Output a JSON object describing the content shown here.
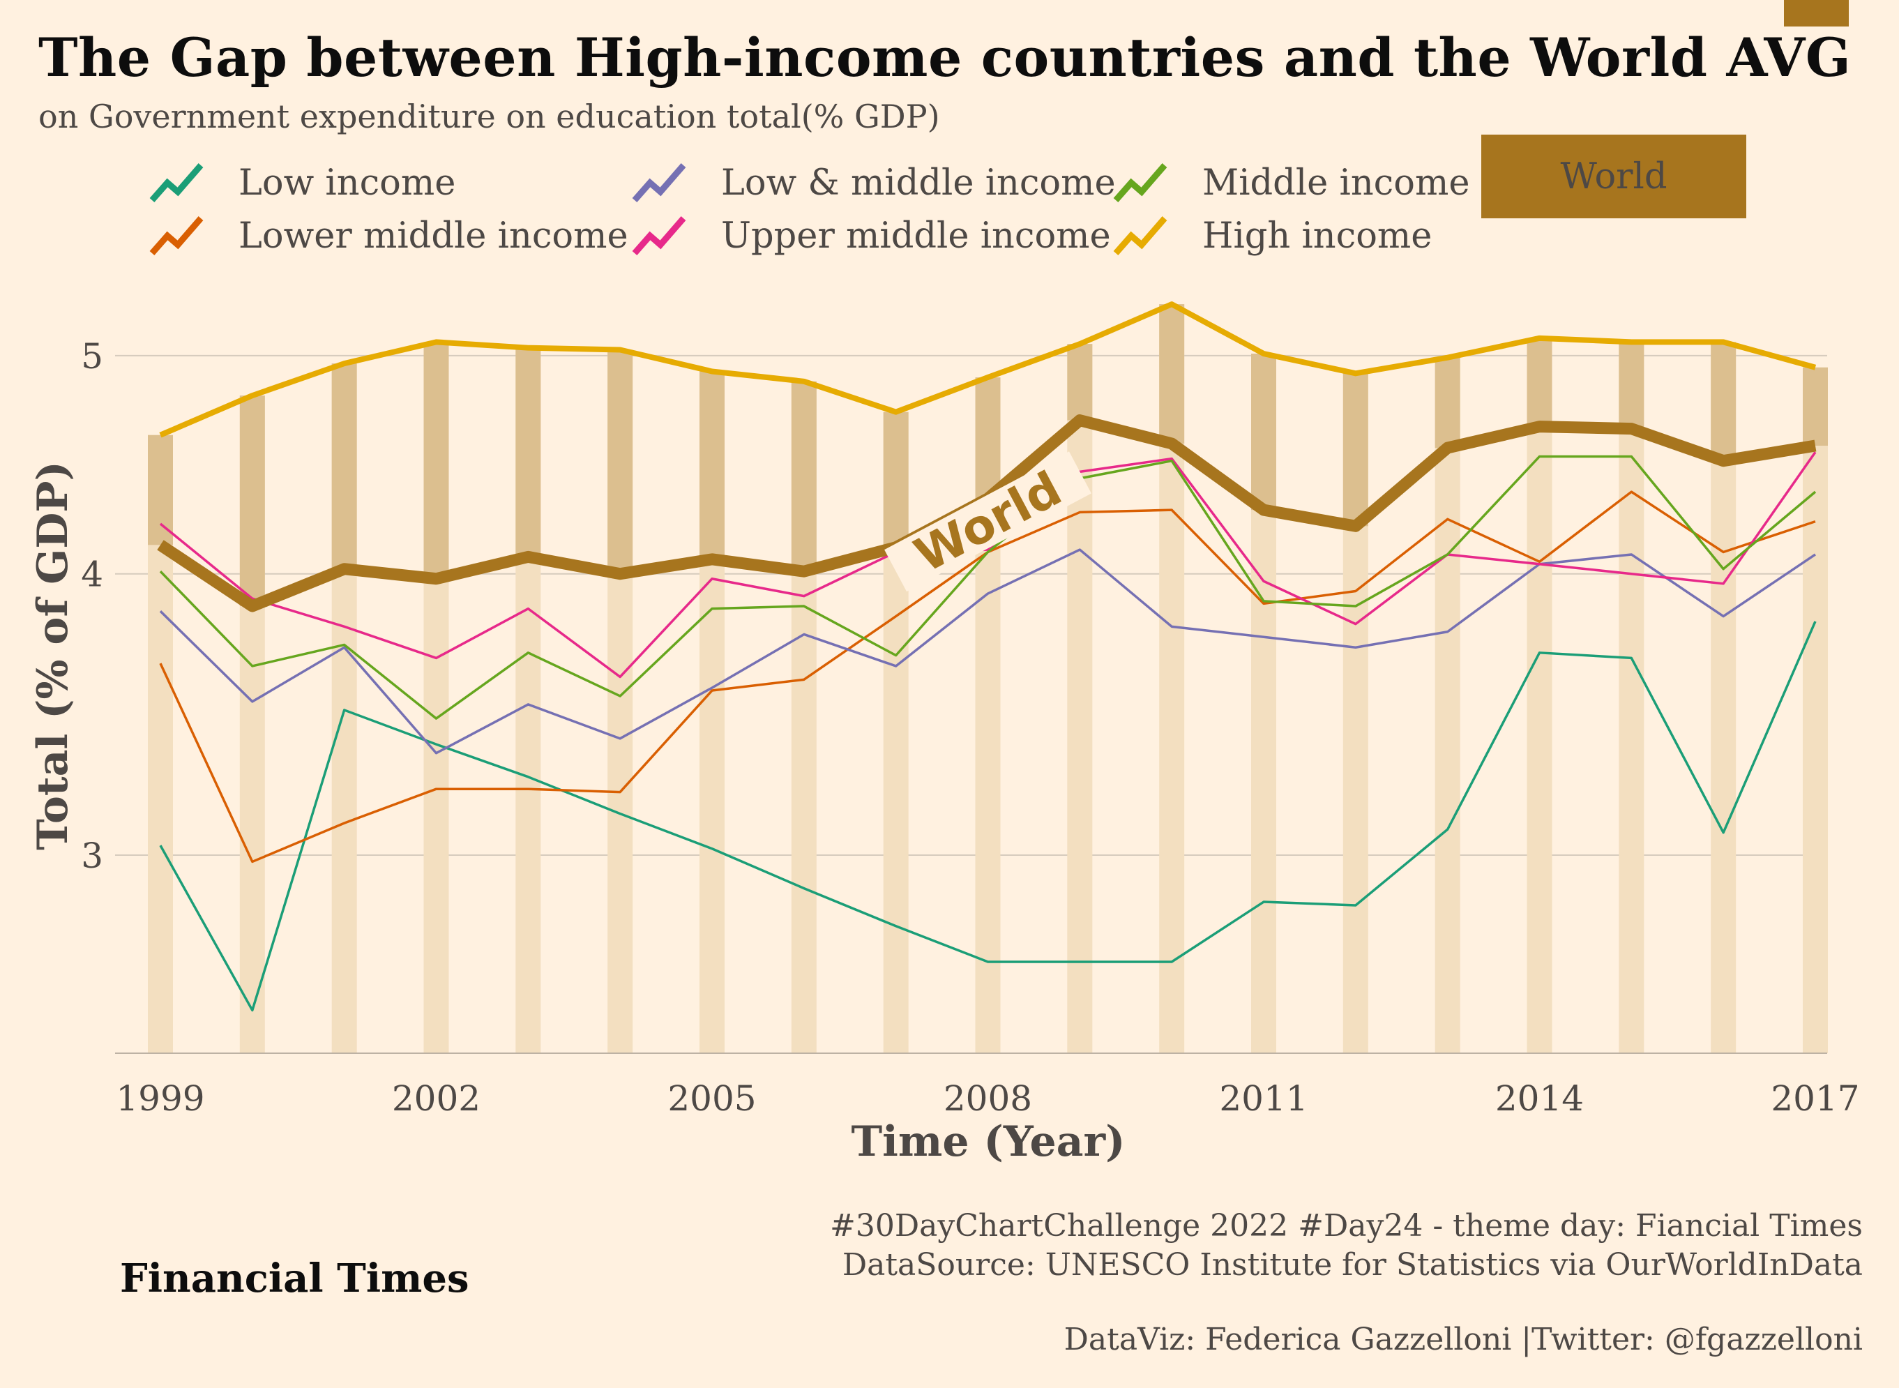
{
  "header": {
    "title": "The Gap between High-income countries and the World AVG",
    "subtitle": "on Government expenditure on education total(% GDP)"
  },
  "legend": {
    "items": [
      {
        "label": "Low income",
        "color": "#1b9e77"
      },
      {
        "label": "Lower middle income",
        "color": "#d95f02"
      },
      {
        "label": "Low & middle income",
        "color": "#7570b3"
      },
      {
        "label": "Upper middle income",
        "color": "#e7298a"
      },
      {
        "label": "Middle income",
        "color": "#66a61e"
      },
      {
        "label": "High income",
        "color": "#e6ab02"
      }
    ],
    "world_label": "World",
    "world_color": "#a7751e"
  },
  "chart_data": {
    "type": "line",
    "title": "The Gap between High-income countries and the World AVG",
    "subtitle": "on Government expenditure on education total(% GDP)",
    "xlabel": "Time (Year)",
    "ylabel": "Total (% of GDP)",
    "x": [
      1999,
      2000,
      2001,
      2002,
      2003,
      2004,
      2005,
      2006,
      2007,
      2008,
      2009,
      2010,
      2011,
      2012,
      2013,
      2014,
      2015,
      2016,
      2017
    ],
    "xticks": [
      "1999",
      "2002",
      "2005",
      "2008",
      "2011",
      "2014",
      "2017"
    ],
    "yticks": [
      "3",
      "4",
      "5"
    ],
    "ylim": [
      2.45,
      5.35
    ],
    "log_scale": "y",
    "grid": "horizontal",
    "legend_position": "top",
    "annotation": "World",
    "series": [
      {
        "name": "Low income",
        "color": "#1b9e77",
        "values": [
          3.03,
          2.56,
          3.48,
          3.36,
          3.25,
          3.13,
          3.02,
          2.9,
          2.79,
          2.69,
          2.69,
          2.69,
          2.86,
          2.85,
          3.08,
          3.69,
          3.67,
          3.07,
          3.81
        ]
      },
      {
        "name": "Lower middle income",
        "color": "#d95f02",
        "values": [
          3.65,
          2.98,
          3.1,
          3.21,
          3.21,
          3.2,
          3.55,
          3.59,
          3.83,
          4.09,
          4.26,
          4.27,
          3.88,
          3.93,
          4.23,
          4.05,
          4.35,
          4.09,
          4.22
        ]
      },
      {
        "name": "Low & middle income",
        "color": "#7570b3",
        "values": [
          3.85,
          3.51,
          3.71,
          3.33,
          3.5,
          3.38,
          3.56,
          3.76,
          3.64,
          3.92,
          4.1,
          3.79,
          3.75,
          3.71,
          3.77,
          4.04,
          4.08,
          3.83,
          4.08
        ]
      },
      {
        "name": "Upper middle income",
        "color": "#e7298a",
        "values": [
          4.21,
          3.9,
          3.79,
          3.67,
          3.86,
          3.6,
          3.98,
          3.91,
          4.09,
          4.1,
          4.44,
          4.5,
          3.97,
          3.8,
          4.08,
          4.04,
          4.0,
          3.96,
          4.53
        ]
      },
      {
        "name": "Middle income",
        "color": "#66a61e",
        "values": [
          4.01,
          3.64,
          3.72,
          3.45,
          3.69,
          3.53,
          3.86,
          3.87,
          3.68,
          4.09,
          4.41,
          4.49,
          3.89,
          3.87,
          4.08,
          4.51,
          4.51,
          4.02,
          4.35
        ]
      },
      {
        "name": "High income",
        "color": "#e6ab02",
        "values": [
          4.61,
          4.8,
          4.96,
          5.07,
          5.04,
          5.03,
          4.92,
          4.87,
          4.72,
          4.89,
          5.06,
          5.27,
          5.01,
          4.91,
          4.99,
          5.09,
          5.07,
          5.07,
          4.94
        ]
      },
      {
        "name": "World",
        "color": "#a7751e",
        "values": [
          4.12,
          3.87,
          4.02,
          3.98,
          4.07,
          4.0,
          4.06,
          4.01,
          4.11,
          4.32,
          4.68,
          4.57,
          4.27,
          4.2,
          4.55,
          4.65,
          4.64,
          4.49,
          4.56
        ]
      }
    ]
  },
  "footer": {
    "brand": "Financial Times",
    "credit_lines": [
      "#30DayChartChallenge 2022 #Day24 - theme day: Fiancial Times",
      "DataSource: UNESCO Institute for Statistics via OurWorldInData",
      "DataViz: Federica Gazzelloni |Twitter: @fgazzelloni"
    ]
  }
}
